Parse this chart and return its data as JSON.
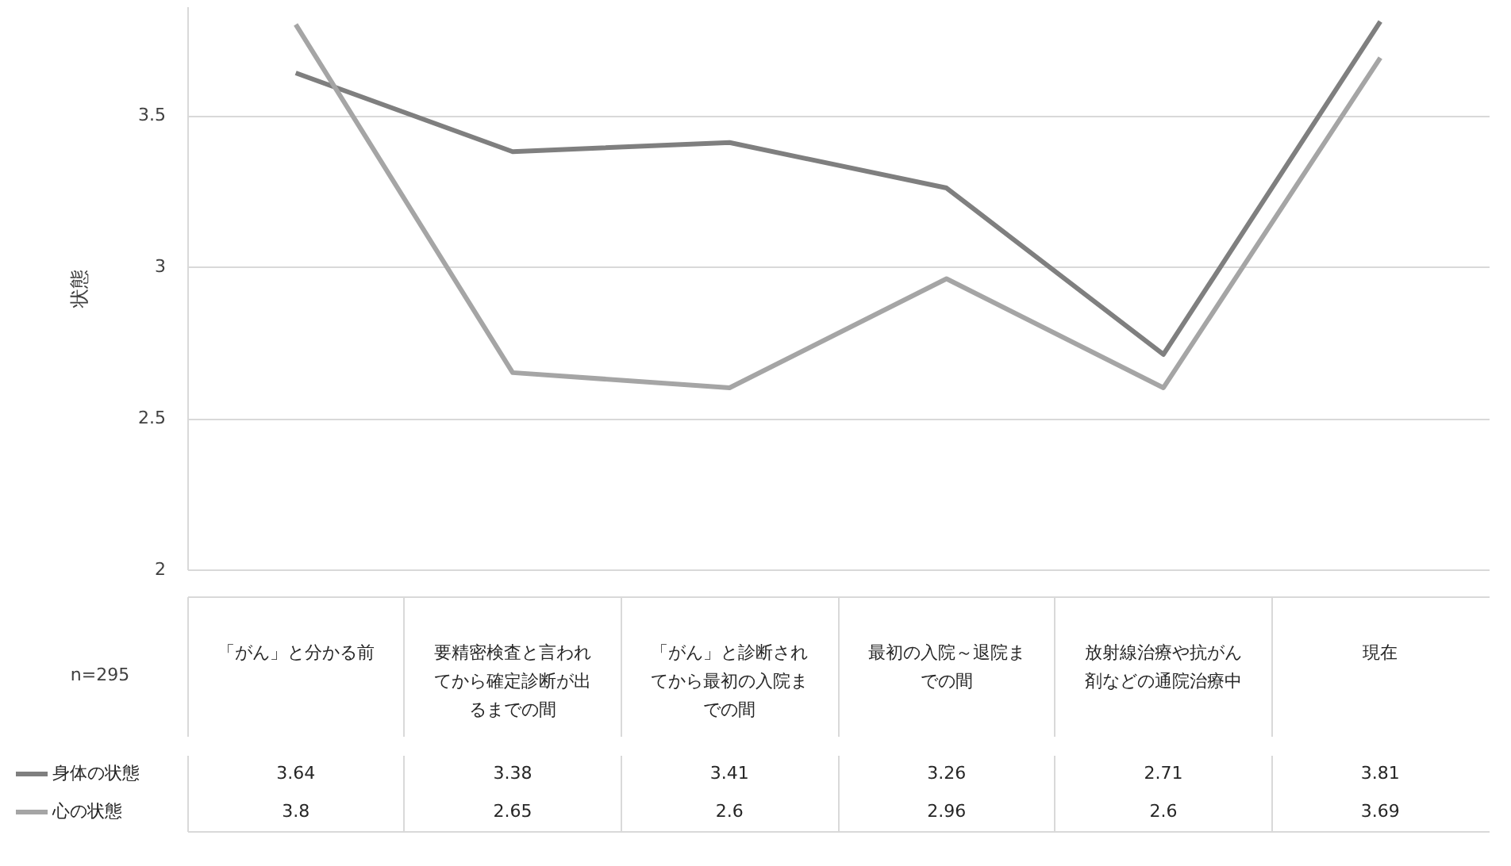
{
  "chart_data": {
    "type": "line",
    "ylabel": "状態",
    "categories": [
      "「がん」と分かる前",
      "要精密検査と言われてから確定診断が出るまでの間",
      "「がん」と診断されてから最初の入院までの間",
      "最初の入院～退院までの間",
      "放射線治療や抗がん剤などの通院治療中",
      "現在"
    ],
    "series": [
      {
        "name": "身体の状態",
        "color": "#7f7f7f",
        "values": [
          3.64,
          3.38,
          3.41,
          3.26,
          2.71,
          3.81
        ]
      },
      {
        "name": "心の状態",
        "color": "#a5a5a5",
        "values": [
          3.8,
          2.65,
          2.6,
          2.96,
          2.6,
          3.69
        ]
      }
    ],
    "ylim": [
      2,
      3.86
    ],
    "yticks": [
      2,
      2.5,
      3,
      3.5
    ],
    "grid": "y",
    "data_labels": true,
    "legend": "bottom left",
    "marker": "none",
    "line_style": "solid",
    "annotations": [
      "n=295"
    ]
  }
}
